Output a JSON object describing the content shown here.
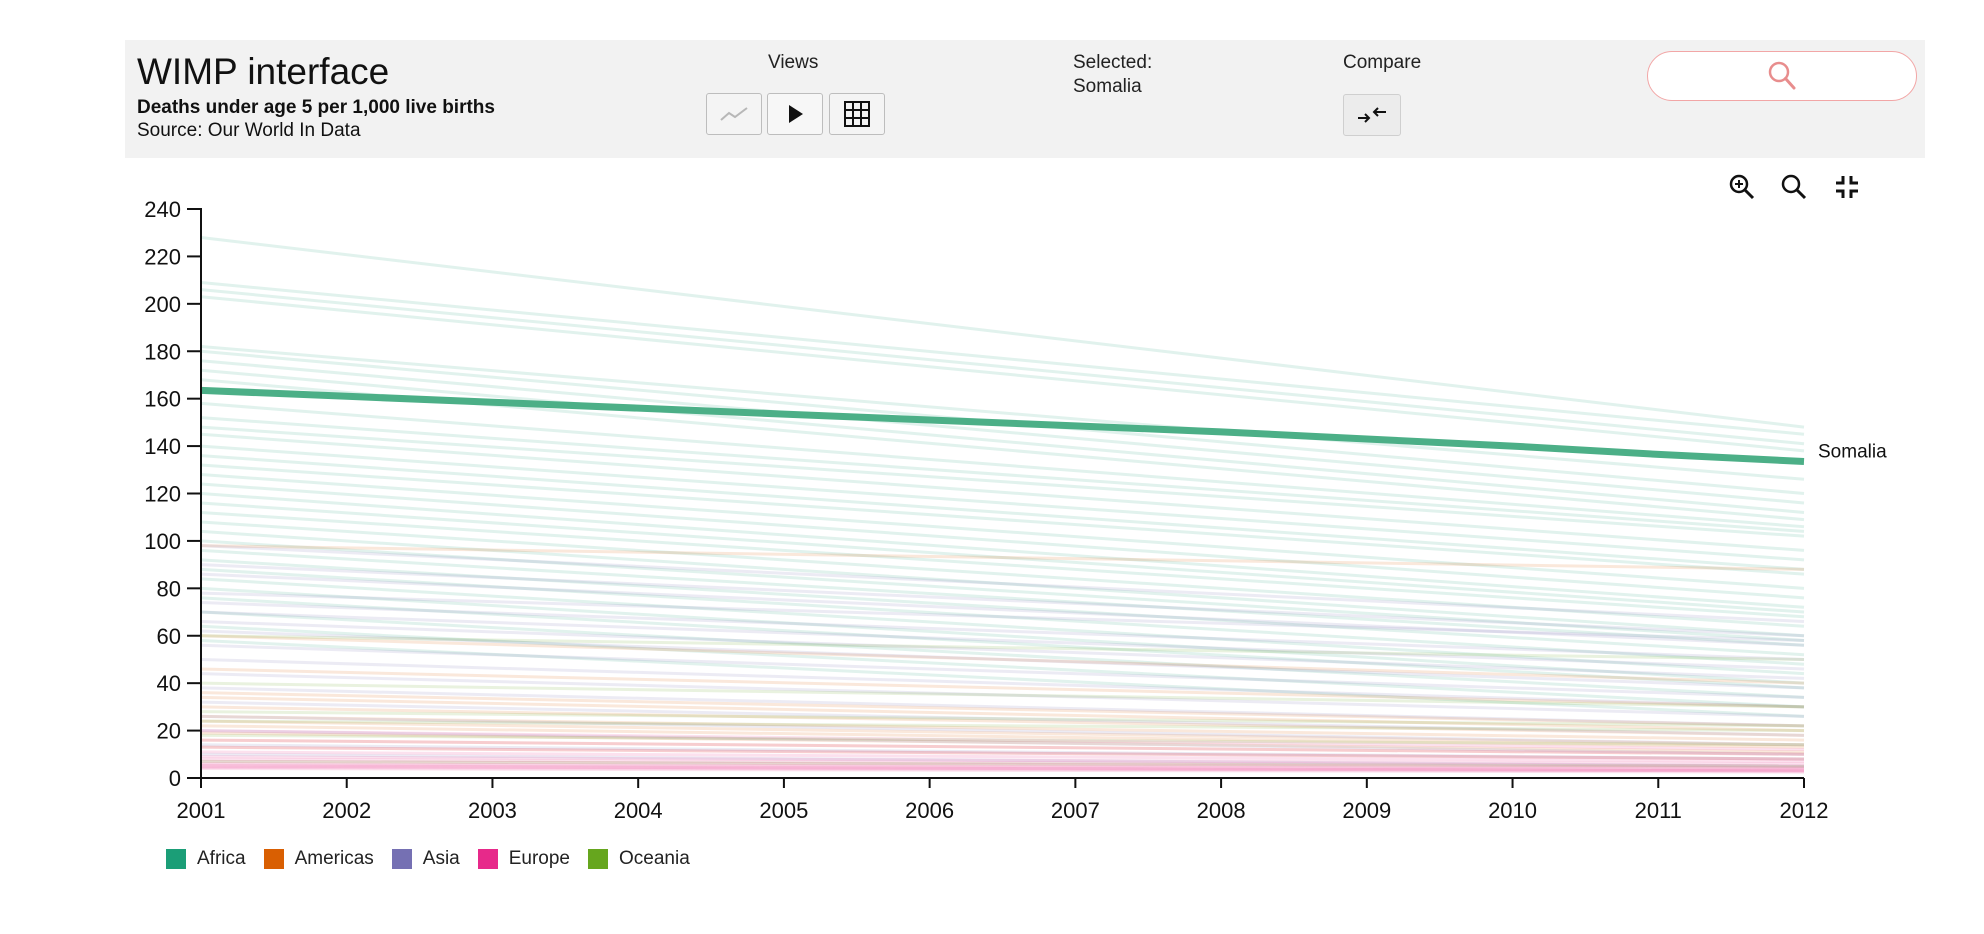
{
  "header": {
    "title": "WIMP interface",
    "subtitle": "Deaths under age 5 per 1,000 live births",
    "source": "Source: Our World In Data"
  },
  "views": {
    "label": "Views",
    "buttons": [
      {
        "name": "line-chart-button",
        "icon": "line-chart-icon"
      },
      {
        "name": "play-button",
        "icon": "play-icon"
      },
      {
        "name": "table-button",
        "icon": "grid-icon"
      }
    ]
  },
  "selection": {
    "label": "Selected:",
    "value": "Somalia"
  },
  "compare": {
    "label": "Compare",
    "icon": "compare-arrows-icon"
  },
  "search": {
    "icon": "search-icon",
    "accent": "#e88d8d"
  },
  "zoom_controls": [
    "zoom-in-icon",
    "zoom-out-icon",
    "shrink-icon"
  ],
  "chart_data": {
    "type": "line",
    "x": [
      2001,
      2002,
      2003,
      2004,
      2005,
      2006,
      2007,
      2008,
      2009,
      2010,
      2011,
      2012
    ],
    "xlim": [
      2001,
      2012
    ],
    "ylim": [
      0,
      240
    ],
    "yticks": [
      0,
      20,
      40,
      60,
      80,
      100,
      120,
      140,
      160,
      180,
      200,
      220,
      240
    ],
    "grid": false,
    "highlight": {
      "name": "Somalia",
      "region": "Africa",
      "values": [
        163.5,
        161,
        158.5,
        156,
        153.5,
        151,
        148.5,
        146,
        143,
        140,
        136.5,
        133.5
      ]
    },
    "background_lines": [
      {
        "region": "Africa",
        "start": 228,
        "end": 148
      },
      {
        "region": "Africa",
        "start": 209,
        "end": 145
      },
      {
        "region": "Africa",
        "start": 206,
        "end": 141
      },
      {
        "region": "Africa",
        "start": 203,
        "end": 138
      },
      {
        "region": "Africa",
        "start": 182,
        "end": 126
      },
      {
        "region": "Africa",
        "start": 180,
        "end": 120
      },
      {
        "region": "Africa",
        "start": 176,
        "end": 116
      },
      {
        "region": "Africa",
        "start": 172,
        "end": 112
      },
      {
        "region": "Africa",
        "start": 168,
        "end": 109
      },
      {
        "region": "Africa",
        "start": 158,
        "end": 106
      },
      {
        "region": "Africa",
        "start": 152,
        "end": 104
      },
      {
        "region": "Africa",
        "start": 148,
        "end": 102
      },
      {
        "region": "Africa",
        "start": 145,
        "end": 96
      },
      {
        "region": "Africa",
        "start": 140,
        "end": 92
      },
      {
        "region": "Africa",
        "start": 136,
        "end": 88
      },
      {
        "region": "Africa",
        "start": 132,
        "end": 86
      },
      {
        "region": "Africa",
        "start": 128,
        "end": 80
      },
      {
        "region": "Africa",
        "start": 124,
        "end": 76
      },
      {
        "region": "Africa",
        "start": 120,
        "end": 72
      },
      {
        "region": "Africa",
        "start": 116,
        "end": 70
      },
      {
        "region": "Africa",
        "start": 112,
        "end": 68
      },
      {
        "region": "Africa",
        "start": 108,
        "end": 64
      },
      {
        "region": "Africa",
        "start": 104,
        "end": 60
      },
      {
        "region": "Africa",
        "start": 100,
        "end": 58
      },
      {
        "region": "Africa",
        "start": 96,
        "end": 56
      },
      {
        "region": "Africa",
        "start": 92,
        "end": 52
      },
      {
        "region": "Africa",
        "start": 88,
        "end": 48
      },
      {
        "region": "Africa",
        "start": 84,
        "end": 44
      },
      {
        "region": "Africa",
        "start": 80,
        "end": 40
      },
      {
        "region": "Africa",
        "start": 76,
        "end": 38
      },
      {
        "region": "Africa",
        "start": 70,
        "end": 34
      },
      {
        "region": "Africa",
        "start": 64,
        "end": 30
      },
      {
        "region": "Africa",
        "start": 58,
        "end": 26
      },
      {
        "region": "Americas",
        "start": 98,
        "end": 88
      },
      {
        "region": "Americas",
        "start": 60,
        "end": 40
      },
      {
        "region": "Americas",
        "start": 46,
        "end": 30
      },
      {
        "region": "Americas",
        "start": 36,
        "end": 22
      },
      {
        "region": "Americas",
        "start": 34,
        "end": 20
      },
      {
        "region": "Americas",
        "start": 30,
        "end": 18
      },
      {
        "region": "Americas",
        "start": 26,
        "end": 16
      },
      {
        "region": "Americas",
        "start": 24,
        "end": 14
      },
      {
        "region": "Americas",
        "start": 22,
        "end": 13
      },
      {
        "region": "Americas",
        "start": 19,
        "end": 11
      },
      {
        "region": "Americas",
        "start": 16,
        "end": 10
      },
      {
        "region": "Americas",
        "start": 13,
        "end": 8
      },
      {
        "region": "Asia",
        "start": 98,
        "end": 66
      },
      {
        "region": "Asia",
        "start": 90,
        "end": 60
      },
      {
        "region": "Asia",
        "start": 86,
        "end": 56
      },
      {
        "region": "Asia",
        "start": 78,
        "end": 58
      },
      {
        "region": "Asia",
        "start": 74,
        "end": 50
      },
      {
        "region": "Asia",
        "start": 70,
        "end": 46
      },
      {
        "region": "Asia",
        "start": 66,
        "end": 42
      },
      {
        "region": "Asia",
        "start": 62,
        "end": 38
      },
      {
        "region": "Asia",
        "start": 56,
        "end": 34
      },
      {
        "region": "Asia",
        "start": 50,
        "end": 30
      },
      {
        "region": "Asia",
        "start": 44,
        "end": 26
      },
      {
        "region": "Asia",
        "start": 38,
        "end": 22
      },
      {
        "region": "Asia",
        "start": 32,
        "end": 18
      },
      {
        "region": "Asia",
        "start": 26,
        "end": 14
      },
      {
        "region": "Asia",
        "start": 20,
        "end": 10
      },
      {
        "region": "Asia",
        "start": 14,
        "end": 8
      },
      {
        "region": "Asia",
        "start": 10,
        "end": 5
      },
      {
        "region": "Europe",
        "start": 20,
        "end": 12
      },
      {
        "region": "Europe",
        "start": 16,
        "end": 10
      },
      {
        "region": "Europe",
        "start": 13,
        "end": 8
      },
      {
        "region": "Europe",
        "start": 11,
        "end": 7
      },
      {
        "region": "Europe",
        "start": 9,
        "end": 6
      },
      {
        "region": "Europe",
        "start": 8,
        "end": 5
      },
      {
        "region": "Europe",
        "start": 7,
        "end": 4.5
      },
      {
        "region": "Europe",
        "start": 6,
        "end": 4
      },
      {
        "region": "Europe",
        "start": 5.5,
        "end": 3.5
      },
      {
        "region": "Europe",
        "start": 5,
        "end": 3
      },
      {
        "region": "Europe",
        "start": 4.5,
        "end": 3
      },
      {
        "region": "Europe",
        "start": 4,
        "end": 2.5
      },
      {
        "region": "Oceania",
        "start": 60,
        "end": 50
      },
      {
        "region": "Oceania",
        "start": 40,
        "end": 30
      },
      {
        "region": "Oceania",
        "start": 28,
        "end": 22
      },
      {
        "region": "Oceania",
        "start": 24,
        "end": 20
      },
      {
        "region": "Oceania",
        "start": 18,
        "end": 14
      },
      {
        "region": "Oceania",
        "start": 7,
        "end": 5
      }
    ],
    "legend": [
      {
        "name": "Africa",
        "color": "#1b9e77"
      },
      {
        "name": "Americas",
        "color": "#d95f02"
      },
      {
        "name": "Asia",
        "color": "#7570b3"
      },
      {
        "name": "Europe",
        "color": "#e7298a"
      },
      {
        "name": "Oceania",
        "color": "#66a61e"
      }
    ],
    "legend_position": "bottom-left",
    "highlight_color": "#4caf87"
  }
}
